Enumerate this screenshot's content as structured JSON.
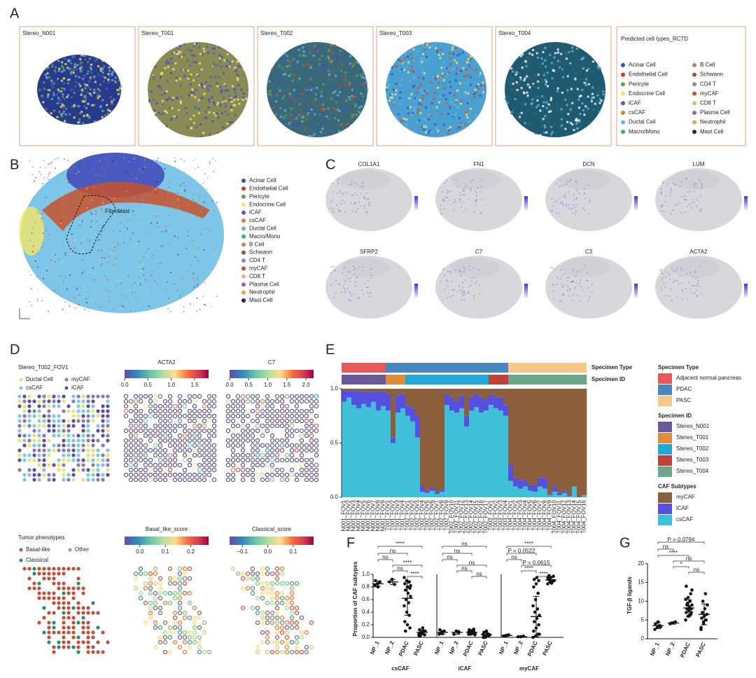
{
  "figure": {
    "panel_a": {
      "label": "A",
      "samples": [
        "Stereo_N001",
        "Stereo_T001",
        "Stereo_T002",
        "Stereo_T003",
        "Stereo_T004"
      ],
      "legend_title": "Predicted cell types_RCTD"
    },
    "cell_types": [
      {
        "name": "Acinar Cell",
        "color": "#3a4fc4"
      },
      {
        "name": "Endothelial Cell",
        "color": "#d0392b"
      },
      {
        "name": "Pericyte",
        "color": "#5aa55a"
      },
      {
        "name": "Endocrine Cell",
        "color": "#f2e66c"
      },
      {
        "name": "iCAF",
        "color": "#5a5eb0"
      },
      {
        "name": "csCAF",
        "color": "#d9803d"
      },
      {
        "name": "Ductal Cell",
        "color": "#62b8e0"
      },
      {
        "name": "Macro/Mono",
        "color": "#3fae6f"
      },
      {
        "name": "B Cell",
        "color": "#c9797a"
      },
      {
        "name": "Schwann",
        "color": "#8c5a3c"
      },
      {
        "name": "CD4 T",
        "color": "#8a8fb0"
      },
      {
        "name": "myCAF",
        "color": "#c8522c"
      },
      {
        "name": "CD8 T",
        "color": "#d8b890"
      },
      {
        "name": "Plasma Cell",
        "color": "#8b6db0"
      },
      {
        "name": "Neutrophil",
        "color": "#e6a44c"
      },
      {
        "name": "Mast Cell",
        "color": "#2d1e4f"
      }
    ],
    "panel_b": {
      "label": "B",
      "annotation": "Fibroblast"
    },
    "panel_c": {
      "label": "C",
      "genes": [
        "COL1A1",
        "FN1",
        "DCN",
        "LUM",
        "SFRP2",
        "C7",
        "C3",
        "ACTA2"
      ]
    },
    "panel_d": {
      "label": "D",
      "fov": "Stereo_T002_FOV1",
      "cell_legend": [
        {
          "name": "Ductal Cell",
          "color": "#e8e27a"
        },
        {
          "name": "myCAF",
          "color": "#8a7ab0"
        },
        {
          "name": "csCAF",
          "color": "#7ec8e0"
        },
        {
          "name": "iCAF",
          "color": "#5a4fa0"
        }
      ],
      "colorbars": [
        {
          "title": "ACTA2",
          "lim": [
            0,
            1.8
          ],
          "ticks": [
            {
              "value": 0,
              "label": "0.0"
            },
            0.5,
            {
              "value": 1,
              "label": "1.0"
            },
            1.5
          ]
        },
        {
          "title": "C7",
          "lim": [
            0,
            2.2
          ],
          "ticks": [
            {
              "value": 0,
              "label": "0.0"
            },
            0.5,
            {
              "value": 1,
              "label": "1.0"
            },
            1.5,
            {
              "value": 2,
              "label": "2.0"
            }
          ]
        },
        {
          "title": "Basal_like_score",
          "lim": [
            -0.06,
            0.27
          ],
          "ticks": [
            {
              "value": 0,
              "label": "0.0"
            },
            0.1,
            0.2
          ]
        },
        {
          "title": "Classical_score",
          "lim": [
            -0.15,
            0.18
          ],
          "ticks": [
            {
              "value": -0.1,
              "label": "−0.1"
            },
            {
              "value": 0,
              "label": "0.0"
            },
            0.1
          ]
        }
      ],
      "phenotype_title": "Tumor phenotypes",
      "phenotypes": [
        {
          "name": "Basal-like",
          "color": "#c0503a"
        },
        {
          "name": "Other",
          "color": "#a0a0a0"
        },
        {
          "name": "Classical",
          "color": "#2a8a7a"
        }
      ]
    }
  },
  "chart_data": [
    {
      "panel": "E",
      "type": "stacked_bar",
      "categories": [
        "N001_FOV1",
        "N001_FOV2",
        "N001_FOV3",
        "N001_FOV4",
        "N001_FOV5",
        "N001_FOV6",
        "N001_FOV7",
        "N001_FOV8",
        "N001_FOV9",
        "T001_FOV1",
        "T001_FOV2",
        "T001_FOV3",
        "T001_FOV4",
        "T002_FOV1",
        "T002_FOV2",
        "T002_FOV3",
        "T002_FOV4",
        "T002_FOV5",
        "T002_FOV6",
        "T002_FOV7",
        "T002_FOV8",
        "T002_FOV9",
        "T002_FOV10",
        "T002_FOV11",
        "T002_FOV12",
        "T002_FOV13",
        "T002_FOV14",
        "T002_FOV15",
        "T002_FOV16",
        "T002_FOV17",
        "T003_FOV1",
        "T003_FOV2",
        "T003_FOV3",
        "T003_FOV4",
        "T004_FOV1",
        "T004_FOV2",
        "T004_FOV3",
        "T004_FOV4",
        "T004_FOV5",
        "T004_FOV6",
        "T004_FOV7",
        "T004_FOV8",
        "T004_FOV9",
        "T004_FOV10",
        "T004_FOV11",
        "T004_FOV12",
        "T004_FOV13",
        "T004_FOV14",
        "T004_FOV15",
        "T004_FOV16"
      ],
      "series": [
        {
          "name": "csCAF",
          "color": "#40c0d8",
          "values": [
            0.88,
            0.92,
            0.85,
            0.82,
            0.86,
            0.83,
            0.88,
            0.8,
            0.84,
            0.8,
            0.5,
            0.78,
            0.82,
            0.75,
            0.7,
            0.55,
            0.05,
            0.04,
            0.06,
            0.03,
            0.05,
            0.85,
            0.8,
            0.78,
            0.82,
            0.65,
            0.8,
            0.83,
            0.78,
            0.8,
            0.85,
            0.82,
            0.8,
            0.75,
            0.15,
            0.1,
            0.08,
            0.1,
            0.06,
            0.05,
            0.1,
            0.08,
            0.02,
            0.05,
            0.02,
            0.04,
            0.01,
            0.1,
            0.0,
            0.02
          ]
        },
        {
          "name": "iCAF",
          "color": "#5550e0",
          "values": [
            0.1,
            0.06,
            0.13,
            0.16,
            0.11,
            0.14,
            0.09,
            0.18,
            0.13,
            0.15,
            0.05,
            0.16,
            0.13,
            0.1,
            0.12,
            0.2,
            0.05,
            0.02,
            0.03,
            0.02,
            0.02,
            0.1,
            0.12,
            0.1,
            0.12,
            0.1,
            0.12,
            0.12,
            0.14,
            0.1,
            0.1,
            0.1,
            0.12,
            0.1,
            0.15,
            0.08,
            0.08,
            0.06,
            0.05,
            0.06,
            0.08,
            0.1,
            0.01,
            0.05,
            0.02,
            0.02,
            0.01,
            0.0,
            0.0,
            0.0
          ]
        },
        {
          "name": "myCAF",
          "color": "#8b5e3c",
          "values": [
            0.02,
            0.02,
            0.02,
            0.02,
            0.03,
            0.03,
            0.03,
            0.02,
            0.03,
            0.05,
            0.45,
            0.06,
            0.05,
            0.15,
            0.18,
            0.25,
            0.9,
            0.94,
            0.91,
            0.95,
            0.93,
            0.05,
            0.08,
            0.12,
            0.06,
            0.25,
            0.08,
            0.05,
            0.08,
            0.1,
            0.05,
            0.08,
            0.08,
            0.15,
            0.7,
            0.82,
            0.84,
            0.84,
            0.89,
            0.89,
            0.82,
            0.82,
            0.97,
            0.9,
            0.96,
            0.94,
            0.98,
            0.9,
            1.0,
            0.98
          ]
        }
      ],
      "legend_title": "CAF Subtypes",
      "ylim": [
        0,
        1
      ],
      "yticks": [
        {
          "value": 0,
          "label": "0.0"
        },
        0.5,
        {
          "value": 1,
          "label": "1.0"
        }
      ],
      "tracks": [
        {
          "name": "Specimen Type",
          "legend": [
            {
              "name": "Adjacent normal pancreas",
              "color": "#e8585a"
            },
            {
              "name": "PDAC",
              "color": "#4a86c0"
            },
            {
              "name": "PASC",
              "color": "#f7c68b"
            }
          ],
          "values": [
            "Adjacent normal pancreas",
            "Adjacent normal pancreas",
            "Adjacent normal pancreas",
            "Adjacent normal pancreas",
            "Adjacent normal pancreas",
            "Adjacent normal pancreas",
            "Adjacent normal pancreas",
            "Adjacent normal pancreas",
            "Adjacent normal pancreas",
            "PDAC",
            "PDAC",
            "PDAC",
            "PDAC",
            "PDAC",
            "PDAC",
            "PDAC",
            "PDAC",
            "PDAC",
            "PDAC",
            "PDAC",
            "PDAC",
            "PDAC",
            "PDAC",
            "PDAC",
            "PDAC",
            "PDAC",
            "PDAC",
            "PDAC",
            "PDAC",
            "PDAC",
            "PDAC",
            "PDAC",
            "PDAC",
            "PDAC",
            "PASC",
            "PASC",
            "PASC",
            "PASC",
            "PASC",
            "PASC",
            "PASC",
            "PASC",
            "PASC",
            "PASC",
            "PASC",
            "PASC",
            "PASC",
            "PASC",
            "PASC",
            "PASC"
          ]
        },
        {
          "name": "Specimen ID",
          "legend": [
            {
              "name": "Stereo_N001",
              "color": "#6b5a9a"
            },
            {
              "name": "Stereo_T001",
              "color": "#e08b3a"
            },
            {
              "name": "Stereo_T002",
              "color": "#1fa8d8"
            },
            {
              "name": "Stereo_T003",
              "color": "#c0403a"
            },
            {
              "name": "Stereo_T004",
              "color": "#6ba88a"
            }
          ],
          "values": [
            "Stereo_N001",
            "Stereo_N001",
            "Stereo_N001",
            "Stereo_N001",
            "Stereo_N001",
            "Stereo_N001",
            "Stereo_N001",
            "Stereo_N001",
            "Stereo_N001",
            "Stereo_T001",
            "Stereo_T001",
            "Stereo_T001",
            "Stereo_T001",
            "Stereo_T002",
            "Stereo_T002",
            "Stereo_T002",
            "Stereo_T002",
            "Stereo_T002",
            "Stereo_T002",
            "Stereo_T002",
            "Stereo_T002",
            "Stereo_T002",
            "Stereo_T002",
            "Stereo_T002",
            "Stereo_T002",
            "Stereo_T002",
            "Stereo_T002",
            "Stereo_T002",
            "Stereo_T002",
            "Stereo_T002",
            "Stereo_T003",
            "Stereo_T003",
            "Stereo_T003",
            "Stereo_T003",
            "Stereo_T004",
            "Stereo_T004",
            "Stereo_T004",
            "Stereo_T004",
            "Stereo_T004",
            "Stereo_T004",
            "Stereo_T004",
            "Stereo_T004",
            "Stereo_T004",
            "Stereo_T004",
            "Stereo_T004",
            "Stereo_T004",
            "Stereo_T004",
            "Stereo_T004",
            "Stereo_T004",
            "Stereo_T004"
          ]
        }
      ]
    },
    {
      "panel": "F",
      "type": "dot_plot",
      "ylabel": "Proportion of CAF subtypes",
      "categories": [
        "NP_1",
        "NP_2",
        "PDAC",
        "PASC"
      ],
      "ylim": [
        0,
        1.5
      ],
      "yticks": [
        {
          "value": 0,
          "label": "0.0"
        },
        0.2,
        0.4,
        0.6,
        0.8,
        {
          "value": 1,
          "label": "1.0"
        }
      ],
      "groups": [
        {
          "name": "csCAF",
          "points": [
            [
              0.82,
              0.85,
              0.88,
              0.9,
              0.8
            ],
            [
              0.88,
              0.92,
              0.84
            ],
            [
              0.95,
              0.9,
              0.88,
              0.85,
              0.8,
              0.78,
              0.75,
              0.7,
              0.65,
              0.6,
              0.55,
              0.5,
              0.4,
              0.35,
              0.25,
              0.2,
              0.15,
              0.1,
              0.88,
              0.82
            ],
            [
              0.05,
              0.08,
              0.1,
              0.12,
              0.06,
              0.04,
              0.02,
              0.15,
              0.1,
              0.07,
              0.09,
              0.03
            ]
          ],
          "mean": [
            0.85,
            0.88,
            0.62,
            0.08
          ],
          "sd": [
            0.04,
            0.04,
            0.27,
            0.04
          ],
          "comparisons": [
            "****",
            "ns",
            "ns",
            "****",
            "ns",
            "****"
          ]
        },
        {
          "name": "iCAF",
          "points": [
            [
              0.05,
              0.08,
              0.1,
              0.12,
              0.06
            ],
            [
              0.05,
              0.1,
              0.08
            ],
            [
              0.05,
              0.08,
              0.1,
              0.12,
              0.06,
              0.07,
              0.09,
              0.11,
              0.04,
              0.05,
              0.1,
              0.08,
              0.06,
              0.13,
              0.07,
              0.09,
              0.05,
              0.1,
              0.08,
              0.06
            ],
            [
              0.0,
              0.02,
              0.05,
              0.08,
              0.1,
              0.03,
              0.01,
              0.06,
              0.04,
              0.0,
              0.02,
              0.05
            ]
          ],
          "mean": [
            0.08,
            0.08,
            0.08,
            0.04
          ],
          "sd": [
            0.03,
            0.03,
            0.03,
            0.03
          ],
          "comparisons": [
            "ns",
            "ns",
            "ns",
            "ns",
            "ns",
            "ns"
          ]
        },
        {
          "name": "myCAF",
          "points": [
            [
              0.02,
              0.03,
              0.04,
              0.02,
              0.03
            ],
            [
              0.01,
              0.01,
              0.02
            ],
            [
              0.0,
              0.02,
              0.05,
              0.1,
              0.15,
              0.2,
              0.25,
              0.3,
              0.35,
              0.4,
              0.45,
              0.5,
              0.6,
              0.7,
              0.8,
              0.85,
              0.9,
              0.92,
              0.95,
              0.05
            ],
            [
              0.85,
              0.88,
              0.9,
              0.92,
              0.95,
              0.97,
              0.98,
              0.86,
              0.9,
              0.93,
              0.88,
              0.95
            ]
          ],
          "mean": [
            0.03,
            0.01,
            0.33,
            0.91
          ],
          "sd": [
            0.01,
            0.005,
            0.32,
            0.04
          ],
          "comparisons": [
            "****",
            "P = 0.0522",
            "ns",
            "P = 0.0615",
            "****",
            "****"
          ]
        }
      ]
    },
    {
      "panel": "G",
      "type": "dot_plot",
      "ylabel": "TGF-β ligands",
      "categories": [
        "NP_1",
        "NP_2",
        "PDAC",
        "PASC"
      ],
      "ylim": [
        0,
        25
      ],
      "yticks": [
        0,
        5,
        10,
        15,
        20
      ],
      "groups": [
        {
          "points": [
            [
              2.5,
              3,
              3.5,
              4,
              4.5,
              3.2
            ],
            [
              4,
              4.2,
              4.5
            ],
            [
              5,
              6,
              6.5,
              7,
              7.5,
              8,
              8,
              8.5,
              9,
              9.5,
              10,
              10.5,
              11,
              12,
              14,
              6,
              7,
              9,
              8,
              13
            ],
            [
              3,
              4,
              5,
              5.5,
              6,
              6.5,
              7,
              8,
              9,
              10,
              12,
              2.5,
              4.5
            ]
          ],
          "mean": [
            3.5,
            4.2,
            8.2,
            6.5
          ],
          "sd": [
            0.8,
            0.3,
            2.2,
            2.8
          ],
          "comparisons": [
            "P = 0.0794",
            "ns",
            "****",
            "ns",
            "*",
            "ns"
          ]
        }
      ]
    }
  ]
}
